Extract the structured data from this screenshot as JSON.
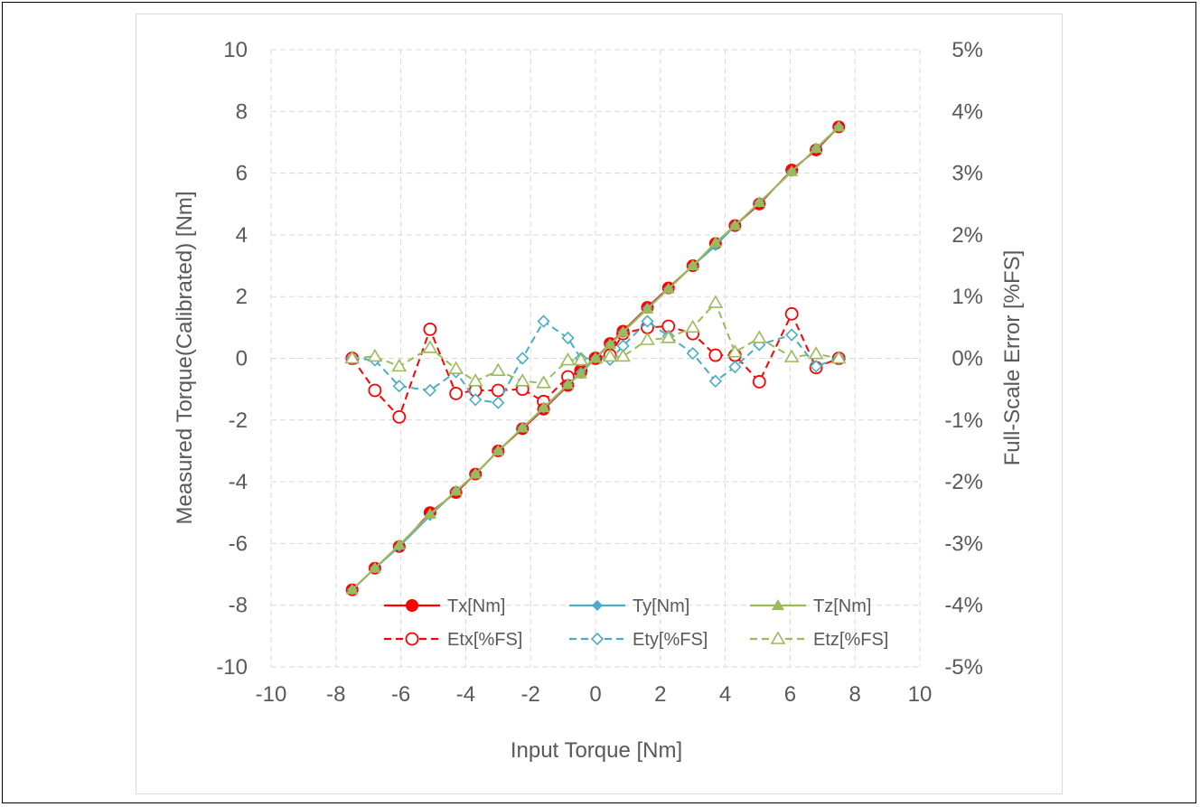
{
  "chart_data": {
    "type": "scatter",
    "xlabel": "Input Torque [Nm]",
    "ylabel": "Measured Torque(Calibrated) [Nm]",
    "y2label": "Full-Scale Error [%FS]",
    "xlim": [
      -10,
      10
    ],
    "ylim": [
      -10,
      10
    ],
    "y2lim": [
      -5,
      5
    ],
    "x_ticks": [
      "-10",
      "-8",
      "-6",
      "-4",
      "-2",
      "0",
      "2",
      "4",
      "6",
      "8",
      "10"
    ],
    "y_ticks": [
      "-10",
      "-8",
      "-6",
      "-4",
      "-2",
      "0",
      "2",
      "4",
      "6",
      "8",
      "10"
    ],
    "y2_ticks": [
      "-5%",
      "-4%",
      "-3%",
      "-2%",
      "-1%",
      "0%",
      "1%",
      "2%",
      "3%",
      "4%",
      "5%"
    ],
    "grid": true,
    "legend_position": "bottom-inside",
    "x": [
      -7.5,
      -6.8,
      -6.05,
      -5.1,
      -4.3,
      -3.7,
      -3.0,
      -2.25,
      -1.6,
      -0.85,
      -0.45,
      0,
      0.45,
      0.85,
      1.6,
      2.25,
      3.0,
      3.7,
      4.3,
      5.05,
      6.05,
      6.8,
      7.5
    ],
    "series": [
      {
        "name": "Tx[Nm]",
        "axis": "left",
        "style": "solid",
        "marker": "filled-circle",
        "color": "#ff0000",
        "values": [
          -7.5,
          -6.8,
          -6.1,
          -5.0,
          -4.35,
          -3.75,
          -3.0,
          -2.28,
          -1.65,
          -0.88,
          -0.45,
          0,
          0.48,
          0.88,
          1.65,
          2.28,
          3.0,
          3.72,
          4.3,
          5.0,
          6.1,
          6.75,
          7.5
        ]
      },
      {
        "name": "Ty[Nm]",
        "axis": "left",
        "style": "solid",
        "marker": "filled-diamond",
        "color": "#4bacc6",
        "values": [
          -7.5,
          -6.8,
          -6.1,
          -5.1,
          -4.3,
          -3.75,
          -3.0,
          -2.25,
          -1.62,
          -0.85,
          -0.45,
          0,
          0.45,
          0.85,
          1.62,
          2.25,
          3.0,
          3.65,
          4.3,
          5.05,
          6.05,
          6.8,
          7.5
        ]
      },
      {
        "name": "Tz[Nm]",
        "axis": "left",
        "style": "solid",
        "marker": "filled-triangle",
        "color": "#9bbb59",
        "values": [
          -7.5,
          -6.8,
          -6.05,
          -5.05,
          -4.3,
          -3.75,
          -3.0,
          -2.25,
          -1.6,
          -0.85,
          -0.5,
          0,
          0.45,
          0.85,
          1.6,
          2.25,
          3.0,
          3.75,
          4.3,
          5.05,
          6.05,
          6.8,
          7.5
        ]
      },
      {
        "name": "Etx[%FS]",
        "axis": "right",
        "style": "dashed",
        "marker": "open-circle",
        "color": "#ff0000",
        "values": [
          0,
          -0.52,
          -0.95,
          0.47,
          -0.57,
          -0.52,
          -0.52,
          -0.5,
          -0.7,
          -0.3,
          -0.2,
          0,
          0.05,
          0.4,
          0.5,
          0.52,
          0.4,
          0.05,
          0.05,
          -0.38,
          0.72,
          -0.15,
          0
        ]
      },
      {
        "name": "Ety[%FS]",
        "axis": "right",
        "style": "dashed",
        "marker": "open-diamond",
        "color": "#4bacc6",
        "values": [
          0,
          -0.03,
          -0.45,
          -0.52,
          -0.22,
          -0.67,
          -0.72,
          0,
          0.6,
          0.33,
          0,
          0,
          -0.02,
          0.2,
          0.6,
          0.36,
          0.08,
          -0.37,
          -0.14,
          0.22,
          0.38,
          -0.13,
          0
        ]
      },
      {
        "name": "Etz[%FS]",
        "axis": "right",
        "style": "dashed",
        "marker": "open-triangle",
        "color": "#9bbb59",
        "values": [
          0,
          0.03,
          -0.13,
          0.17,
          -0.17,
          -0.37,
          -0.2,
          -0.37,
          -0.4,
          -0.03,
          -0.03,
          0,
          0.03,
          0.03,
          0.3,
          0.33,
          0.5,
          0.9,
          0.1,
          0.33,
          0.02,
          0.07,
          0
        ]
      }
    ]
  }
}
